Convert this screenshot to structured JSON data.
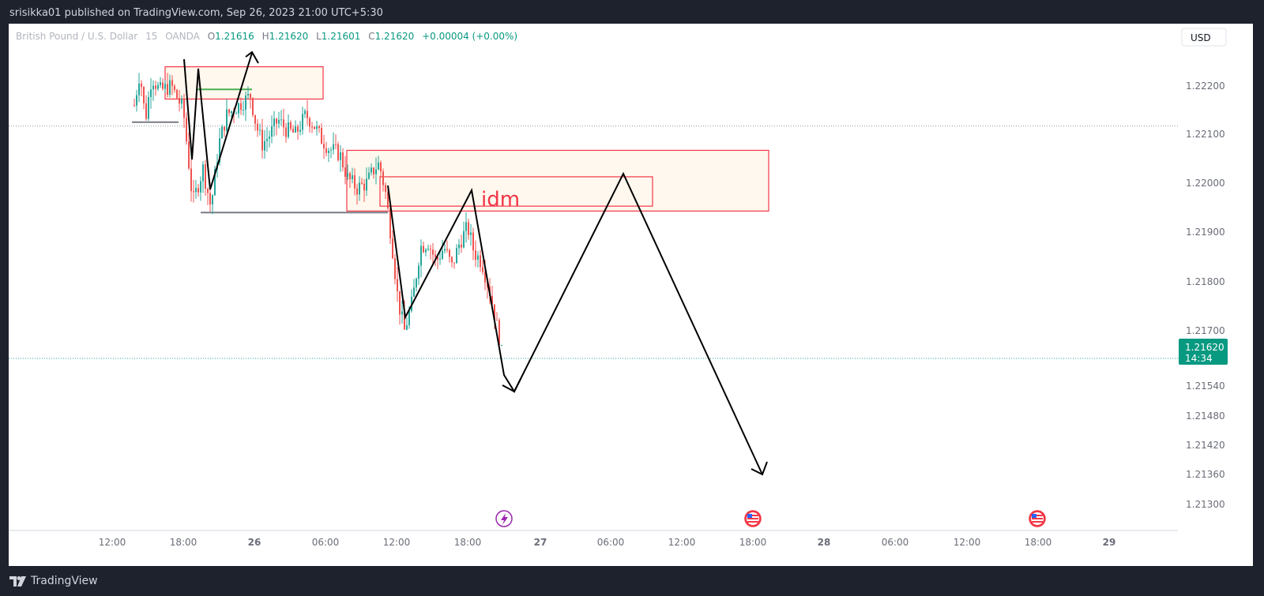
{
  "header": {
    "published": "srisikka01 published on TradingView.com, Sep 26, 2023 21:00 UTC+5:30"
  },
  "footer": {
    "brand": "TradingView"
  },
  "legend": {
    "symbol": "British Pound / U.S. Dollar",
    "interval": "15",
    "source": "OANDA",
    "o_label": "O",
    "o": "1.21616",
    "h_label": "H",
    "h": "1.21620",
    "l_label": "L",
    "l": "1.21601",
    "c_label": "C",
    "c": "1.21620",
    "change": "+0.00004 (+0.00%)"
  },
  "currency_button": "USD",
  "price_tag": {
    "price": "1.21620",
    "countdown": "14:34"
  },
  "annotation": {
    "text": "idm"
  },
  "colors": {
    "up": "#26a69a",
    "down": "#ef5350",
    "zone_border": "#f23645",
    "zone_fill": "#fff8ee",
    "tag": "#089981",
    "arrow": "#000000"
  },
  "chart_data": {
    "type": "candlestick",
    "ylim": [
      1.2127,
      1.2227
    ],
    "y_ticks": [
      "1.22200",
      "1.22100",
      "1.22000",
      "1.21900",
      "1.21800",
      "1.21700",
      "1.21540",
      "1.21480",
      "1.21420",
      "1.21360",
      "1.21300"
    ],
    "x_ticks": [
      "12:00",
      "18:00",
      "26",
      "06:00",
      "12:00",
      "18:00",
      "27",
      "06:00",
      "12:00",
      "18:00",
      "28",
      "06:00",
      "12:00",
      "18:00",
      "29"
    ],
    "horizontal_lines": [
      {
        "price": 1.22117,
        "style": "dotted",
        "color": "#9598a1"
      },
      {
        "price": 1.2162,
        "style": "dotted",
        "color": "#26a69a"
      }
    ],
    "key_levels": [
      {
        "price": 1.22125,
        "color": "#787b86"
      },
      {
        "price": 1.22193,
        "color": "#4caf50"
      },
      {
        "price": 1.2194,
        "color": "#787b86"
      }
    ],
    "zones": [
      {
        "top": 1.2224,
        "bottom": 1.22173
      },
      {
        "top": 1.22067,
        "bottom": 1.21943
      },
      {
        "top": 1.22013,
        "bottom": 1.21953
      }
    ],
    "events": [
      "lightning",
      "us-flag",
      "us-flag"
    ]
  }
}
